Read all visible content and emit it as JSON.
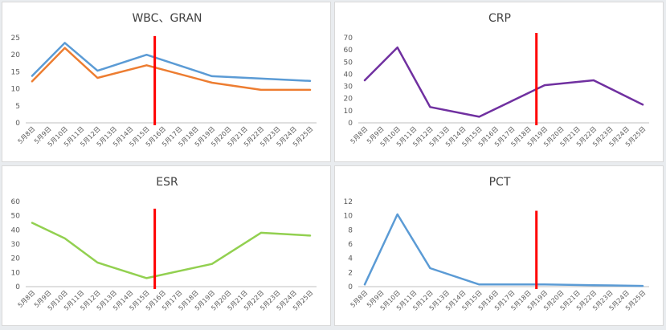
{
  "chart_data": [
    {
      "type": "line",
      "title": "WBC、GRAN",
      "categories": [
        "5月8日",
        "5月9日",
        "5月10日",
        "5月11日",
        "5月12日",
        "5月13日",
        "5月14日",
        "5月15日",
        "5月16日",
        "5月17日",
        "5月18日",
        "5月19日",
        "5月20日",
        "5月21日",
        "5月22日",
        "5月23日",
        "5月24日",
        "5月25日"
      ],
      "ylim": [
        0,
        25
      ],
      "yticks": [
        0,
        5,
        10,
        15,
        20,
        25
      ],
      "series": [
        {
          "name": "WBC",
          "color": "#5b9bd5",
          "points": [
            [
              0,
              13.8
            ],
            [
              2,
              23.5
            ],
            [
              4,
              15.3
            ],
            [
              7,
              20.0
            ],
            [
              11,
              13.7
            ],
            [
              17,
              12.3
            ]
          ]
        },
        {
          "name": "GRAN",
          "color": "#ed7d31",
          "points": [
            [
              0,
              12.2
            ],
            [
              2,
              22.0
            ],
            [
              4,
              13.2
            ],
            [
              7,
              16.9
            ],
            [
              11,
              11.8
            ],
            [
              14,
              9.7
            ],
            [
              17,
              9.7
            ]
          ]
        }
      ],
      "marker": {
        "position": 7.5,
        "color": "#ff0000",
        "value_range": [
          0,
          25.5
        ]
      }
    },
    {
      "type": "line",
      "title": "CRP",
      "categories": [
        "5月8日",
        "5月9日",
        "5月10日",
        "5月11日",
        "5月12日",
        "5月13日",
        "5月14日",
        "5月15日",
        "5月16日",
        "5月17日",
        "5月18日",
        "5月19日",
        "5月20日",
        "5月21日",
        "5月22日",
        "5月23日",
        "5月24日",
        "5月25日"
      ],
      "ylim": [
        0,
        70
      ],
      "yticks": [
        0,
        10,
        20,
        30,
        40,
        50,
        60,
        70
      ],
      "series": [
        {
          "name": "CRP",
          "color": "#7030a0",
          "points": [
            [
              0,
              35
            ],
            [
              2,
              62
            ],
            [
              4,
              13
            ],
            [
              7,
              5
            ],
            [
              11,
              31
            ],
            [
              14,
              35
            ],
            [
              17,
              15
            ]
          ]
        }
      ],
      "marker": {
        "position": 10.5,
        "color": "#ff0000",
        "value_range": [
          0,
          74
        ]
      }
    },
    {
      "type": "line",
      "title": "ESR",
      "categories": [
        "5月8日",
        "5月9日",
        "5月10日",
        "5月11日",
        "5月12日",
        "5月13日",
        "5月14日",
        "5月15日",
        "5月16日",
        "5月17日",
        "5月18日",
        "5月19日",
        "5月20日",
        "5月21日",
        "5月22日",
        "5月23日",
        "5月24日",
        "5月25日"
      ],
      "ylim": [
        0,
        60
      ],
      "yticks": [
        0,
        10,
        20,
        30,
        40,
        50,
        60
      ],
      "series": [
        {
          "name": "ESR",
          "color": "#92d050",
          "points": [
            [
              0,
              45
            ],
            [
              2,
              34
            ],
            [
              4,
              17
            ],
            [
              7,
              6
            ],
            [
              11,
              16
            ],
            [
              14,
              38
            ],
            [
              17,
              36
            ]
          ]
        }
      ],
      "marker": {
        "position": 7.5,
        "color": "#ff0000",
        "value_range": [
          0,
          55
        ]
      }
    },
    {
      "type": "line",
      "title": "PCT",
      "categories": [
        "5月8日",
        "5月9日",
        "5月10日",
        "5月11日",
        "5月12日",
        "5月13日",
        "5月14日",
        "5月15日",
        "5月16日",
        "5月17日",
        "5月18日",
        "5月19日",
        "5月20日",
        "5月21日",
        "5月22日",
        "5月23日",
        "5月24日",
        "5月25日"
      ],
      "ylim": [
        0,
        12
      ],
      "yticks": [
        0,
        2,
        4,
        6,
        8,
        10,
        12
      ],
      "series": [
        {
          "name": "PCT",
          "color": "#5b9bd5",
          "points": [
            [
              0,
              0.3
            ],
            [
              2,
              10.2
            ],
            [
              4,
              2.6
            ],
            [
              7,
              0.3
            ],
            [
              11,
              0.3
            ],
            [
              14,
              0.2
            ],
            [
              17,
              0.1
            ]
          ]
        }
      ],
      "marker": {
        "position": 10.5,
        "color": "#ff0000",
        "value_range": [
          0,
          10.7
        ]
      }
    }
  ]
}
